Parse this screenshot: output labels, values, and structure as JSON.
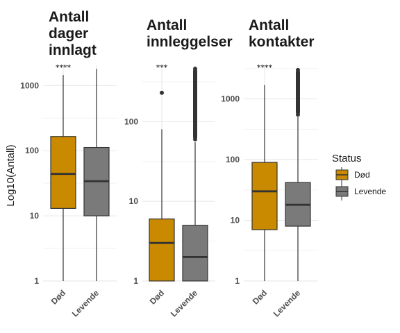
{
  "ylabel": "Log10(Antall)",
  "legend": {
    "title": "Status",
    "items": [
      {
        "label": "Død",
        "color": "#C98A00"
      },
      {
        "label": "Levende",
        "color": "#7A7A7A"
      }
    ]
  },
  "chart_data": [
    {
      "type": "boxplot",
      "title_lines": [
        "Antall",
        "dager",
        "innlagt"
      ],
      "y_scale": "log10",
      "ylim": [
        1,
        2000
      ],
      "yticks": [
        1,
        10,
        100,
        1000
      ],
      "ytick_labels": [
        "1",
        "10",
        "100",
        "1000"
      ],
      "significance": "****",
      "categories": [
        "Død",
        "Levende"
      ],
      "boxes": [
        {
          "category": "Død",
          "min": 1,
          "q1": 13,
          "median": 44,
          "q3": 165,
          "max": 1450,
          "outliers": []
        },
        {
          "category": "Levende",
          "min": 1,
          "q1": 10,
          "median": 34,
          "q3": 112,
          "max": 1800,
          "outliers": []
        }
      ]
    },
    {
      "type": "boxplot",
      "title_lines": [
        "Antall",
        "innleggelser"
      ],
      "y_scale": "log10",
      "ylim": [
        1,
        500
      ],
      "yticks": [
        1,
        10,
        100
      ],
      "ytick_labels": [
        "1",
        "10",
        "100"
      ],
      "significance": "***",
      "categories": [
        "Død",
        "Levende"
      ],
      "boxes": [
        {
          "category": "Død",
          "min": 1,
          "q1": 1,
          "median": 3,
          "q3": 6,
          "max": 80,
          "outliers": [
            230
          ]
        },
        {
          "category": "Levende",
          "min": 1,
          "q1": 1,
          "median": 2,
          "q3": 5,
          "max": 55,
          "outliers": [
            60,
            70,
            85,
            100,
            120,
            150,
            180,
            220,
            270,
            320,
            400,
            460
          ]
        }
      ]
    },
    {
      "type": "boxplot",
      "title_lines": [
        "Antall",
        "kontakter"
      ],
      "y_scale": "log10",
      "ylim": [
        1,
        3500
      ],
      "yticks": [
        1,
        10,
        100,
        1000
      ],
      "ytick_labels": [
        "1",
        "10",
        "100",
        "1000"
      ],
      "significance": "****",
      "categories": [
        "Død",
        "Levende"
      ],
      "boxes": [
        {
          "category": "Død",
          "min": 1,
          "q1": 7,
          "median": 30,
          "q3": 90,
          "max": 1700,
          "outliers": []
        },
        {
          "category": "Levende",
          "min": 1,
          "q1": 8,
          "median": 18,
          "q3": 42,
          "max": 500,
          "outliers": [
            550,
            650,
            800,
            1000,
            1200,
            1500,
            1800,
            2200,
            2700,
            3000
          ]
        }
      ]
    }
  ]
}
